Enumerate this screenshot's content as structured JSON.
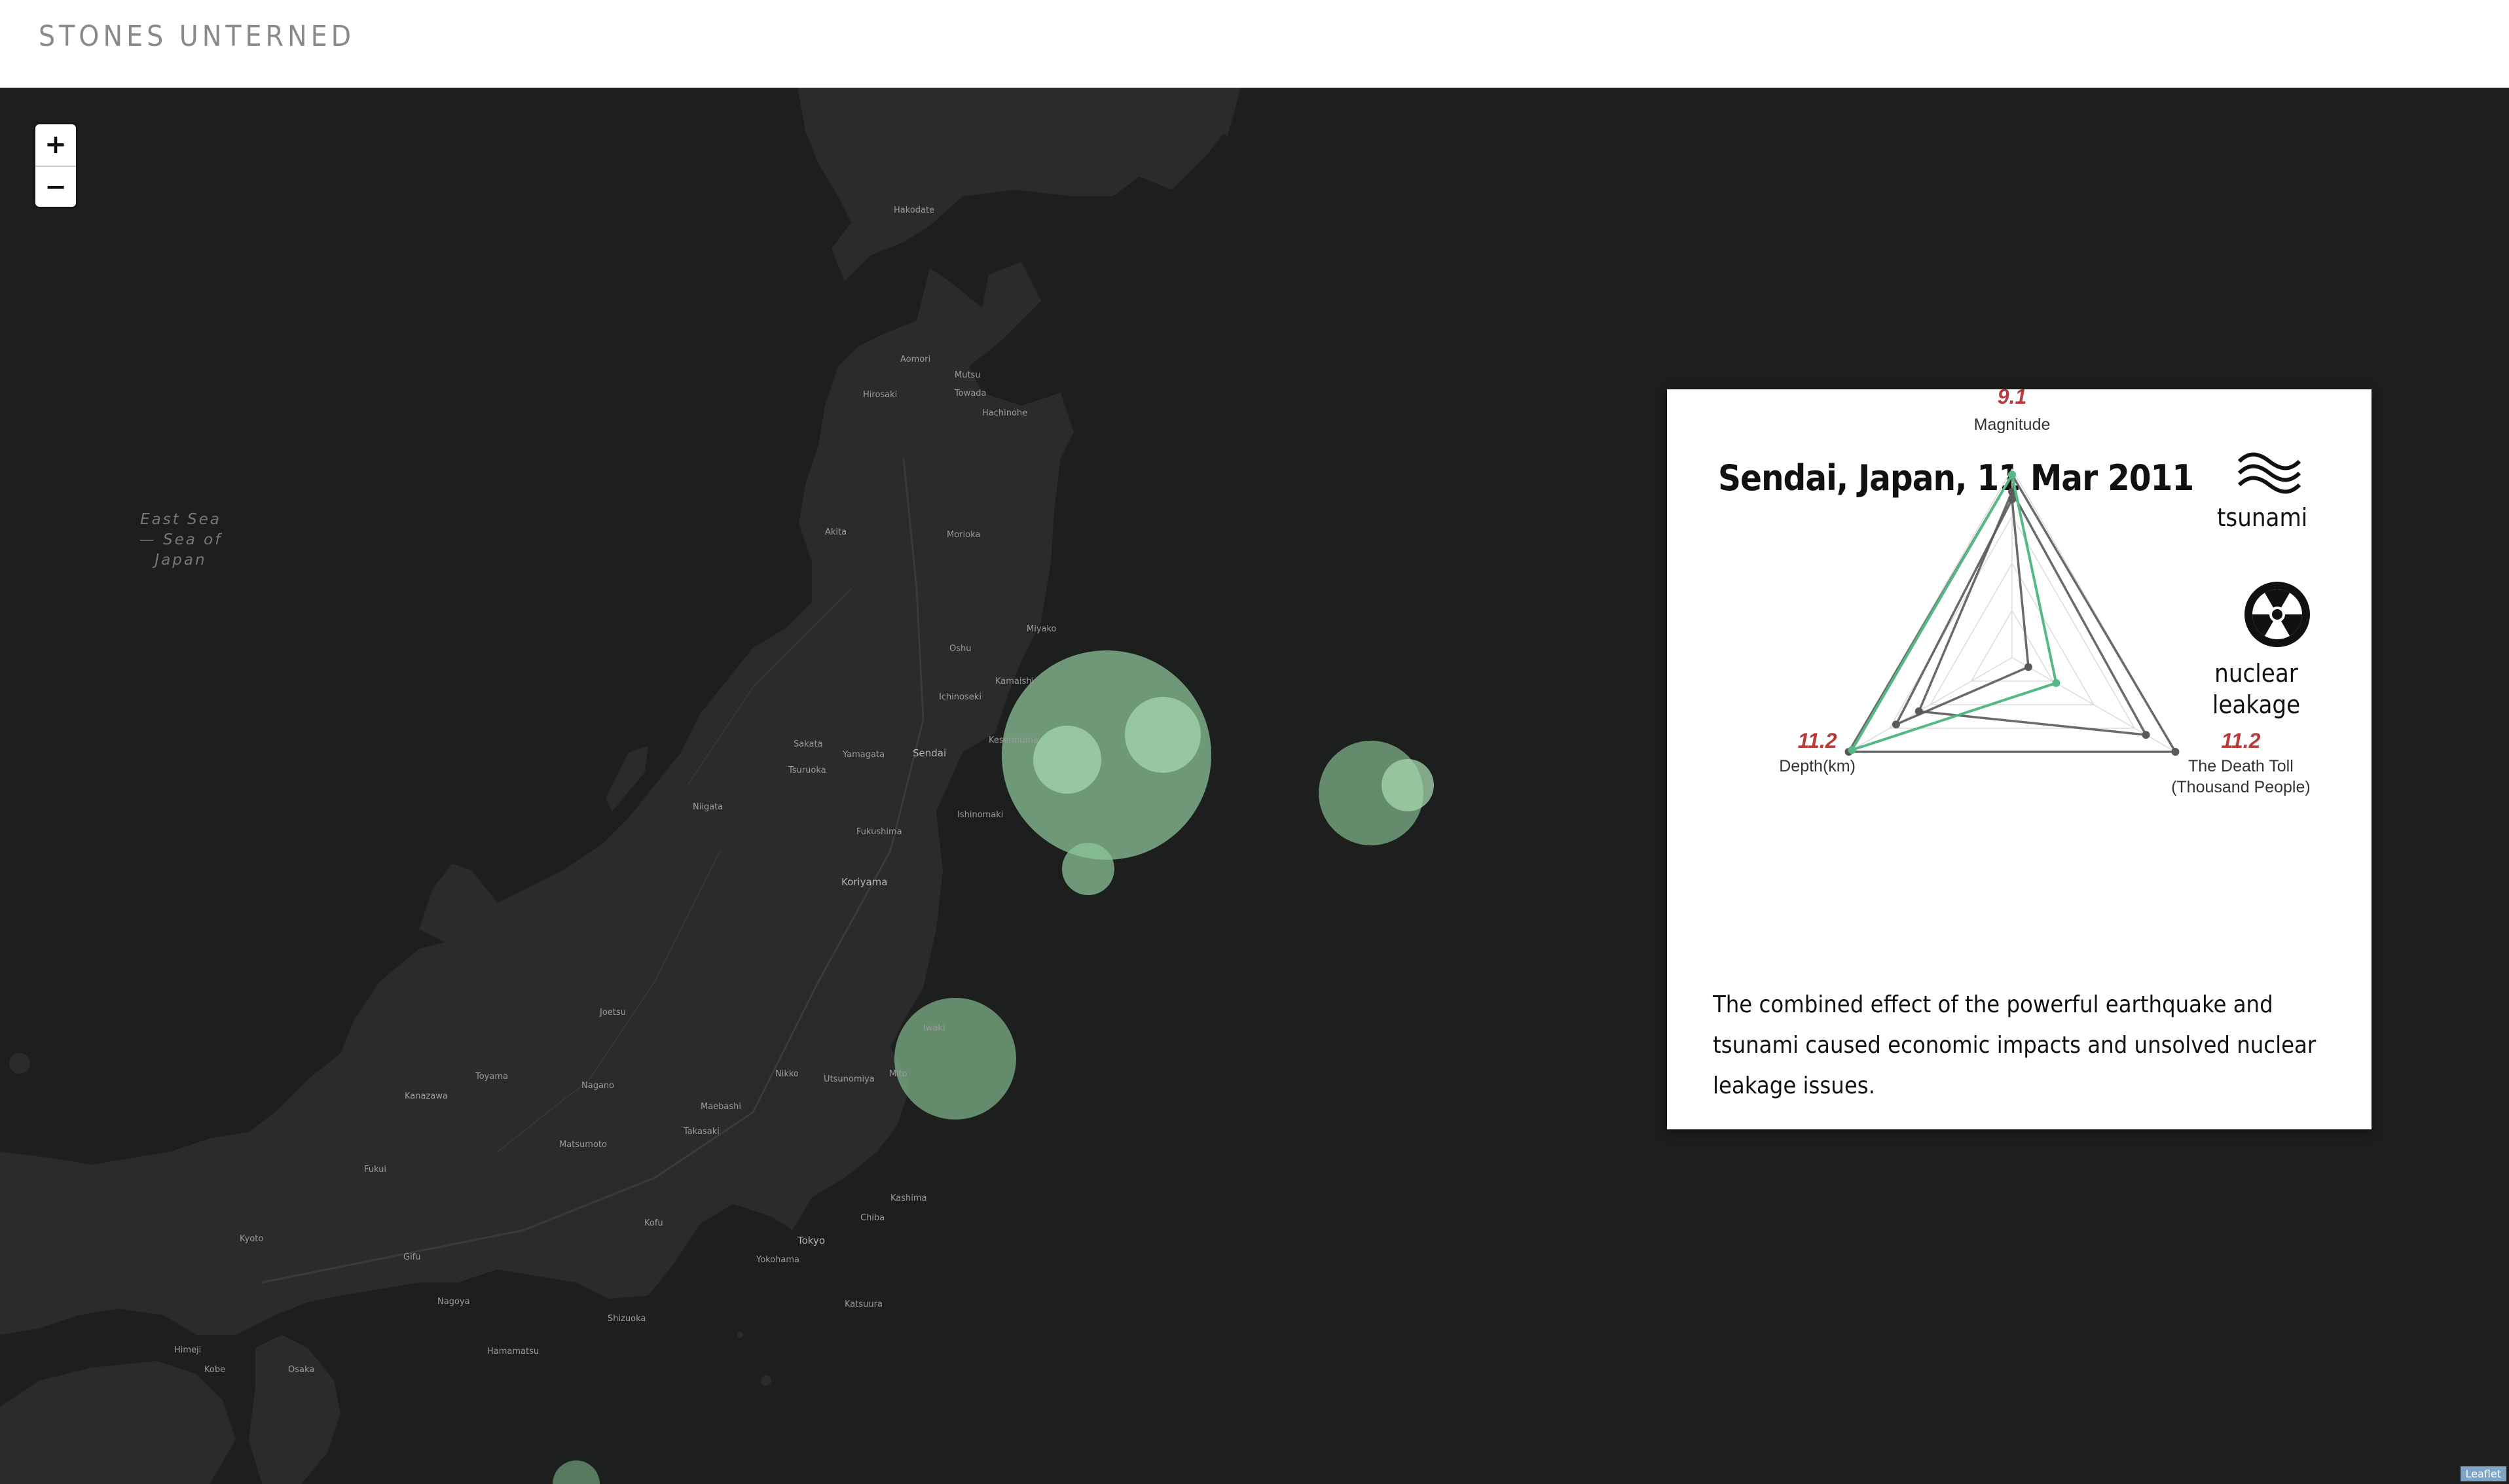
{
  "header": {
    "brand": "STONES UNTERNED"
  },
  "map": {
    "zoom_in": "+",
    "zoom_out": "−",
    "sea_label": "East Sea — Sea of Japan",
    "attribution": "Leaflet",
    "cities": {
      "sendai": "Sendai",
      "yamagata": "Yamagata",
      "fukushima": "Fukushima",
      "koriyama": "Koriyama",
      "niigata": "Niigata",
      "akita": "Akita",
      "morioka": "Morioka",
      "hirosaki": "Hirosaki",
      "aomori": "Aomori",
      "hakodate": "Hakodate",
      "towada": "Towada",
      "hachinohe": "Hachinohe",
      "takasaki": "Takasaki",
      "nagano": "Nagano",
      "toyama": "Toyama",
      "kanazawa": "Kanazawa",
      "tokyo": "Tokyo",
      "yokohama": "Yokohama",
      "nagoya": "Nagoya",
      "osaka": "Osaka",
      "shizuoka": "Shizuoka",
      "kofu": "Kofu",
      "utsunomiya": "Utsunomiya",
      "mito": "Mito",
      "chiba": "Chiba",
      "hamamatsu": "Hamamatsu",
      "kyoto": "Kyoto",
      "himeji": "Himeji",
      "kobe": "Kobe",
      "fukui": "Fukui",
      "gifu": "Gifu",
      "maebashi": "Maebashi",
      "mutsu": "Mutsu",
      "sakata": "Sakata",
      "tsuruoka": "Tsuruoka",
      "iwaki": "Iwaki",
      "kamaishi": "Kamaishi",
      "miyako": "Miyako",
      "oshu": "Oshu",
      "ichinoseki": "Ichinoseki",
      "kesennuma": "Kesennuma",
      "ishinomaki": "Ishinomaki",
      "joetsu": "Joetsu",
      "matsumoto": "Matsumoto",
      "nikko": "Nikko",
      "katsuura": "Katsuura",
      "kashima": "Kashima"
    }
  },
  "card": {
    "title": "Sendai, Japan, 11 Mar 2011",
    "tsunami_label": "tsunami",
    "nuclear_label": "nuclear leakage",
    "description": "The combined effect of the powerful earthquake and tsunami caused economic impacts and unsolved nuclear leakage issues.",
    "icons": {
      "tsunami": "tsunami-waves-icon",
      "nuclear": "radiation-icon"
    },
    "accent_color": "#b83a3a",
    "series_color": "#56b884"
  },
  "chart_data": {
    "type": "radar",
    "axes": [
      {
        "name": "Magnitude",
        "label_lines": [
          "Magnitude"
        ],
        "value_label": "9.1"
      },
      {
        "name": "Depth(km)",
        "label_lines": [
          "Depth(km)"
        ],
        "value_label": "11.2"
      },
      {
        "name": "The Death Toll (Thousand People)",
        "label_lines": [
          "The Death Toll",
          "(Thousand People)"
        ],
        "value_label": "11.2"
      }
    ],
    "series": [
      {
        "values": [
          0.97,
          0.98,
          0.27
        ],
        "highlight": true
      },
      {
        "values": [
          0.97,
          1.0,
          1.0
        ]
      },
      {
        "values": [
          0.88,
          0.57,
          0.82
        ]
      },
      {
        "values": [
          0.84,
          0.71,
          0.1
        ]
      }
    ],
    "rmax": 1.0,
    "grid": true
  }
}
